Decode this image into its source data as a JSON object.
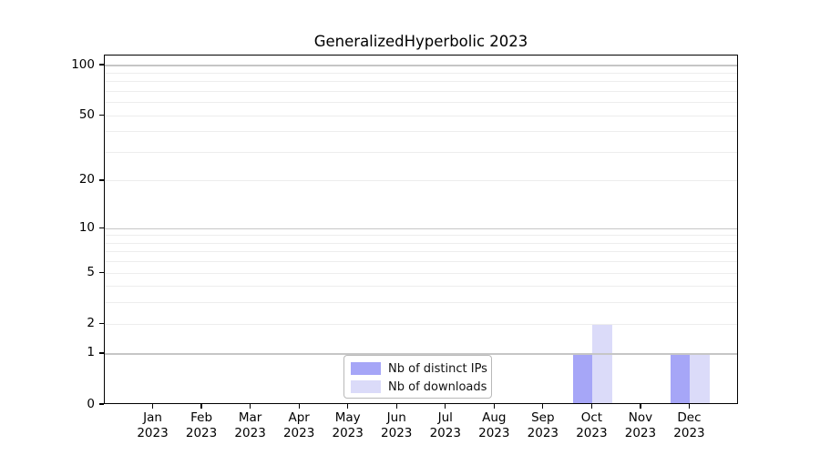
{
  "chart_data": {
    "type": "bar",
    "title": "GeneralizedHyperbolic 2023",
    "categories": [
      "Jan",
      "Feb",
      "Mar",
      "Apr",
      "May",
      "Jun",
      "Jul",
      "Aug",
      "Sep",
      "Oct",
      "Nov",
      "Dec"
    ],
    "category_year": "2023",
    "series": [
      {
        "name": "Nb of distinct IPs",
        "color": "#a6a6f7",
        "values": [
          0,
          0,
          0,
          0,
          0,
          0,
          0,
          0,
          0,
          1,
          0,
          1
        ]
      },
      {
        "name": "Nb of downloads",
        "color": "#dbdbf9",
        "values": [
          0,
          0,
          0,
          0,
          0,
          0,
          0,
          0,
          0,
          2,
          0,
          1
        ]
      }
    ],
    "xlabel": "",
    "ylabel": "",
    "yscale": "log1p",
    "ylim": [
      0,
      115
    ],
    "yticks": [
      100,
      50,
      20,
      10,
      5,
      2,
      1,
      0
    ],
    "ytick_labels": [
      "100",
      "50",
      "20",
      "10",
      "5",
      "2",
      "1",
      "0"
    ],
    "grid": true,
    "grid_major": [
      1,
      10,
      100
    ],
    "grid_minor": [
      2,
      3,
      4,
      5,
      6,
      7,
      8,
      9,
      20,
      30,
      40,
      50,
      60,
      70,
      80,
      90
    ],
    "legend_position": "lower-center-inside",
    "frame_color": "#000000",
    "major_gridline_color": "#c6c6c6",
    "minor_gridline_color": "#ededed"
  }
}
